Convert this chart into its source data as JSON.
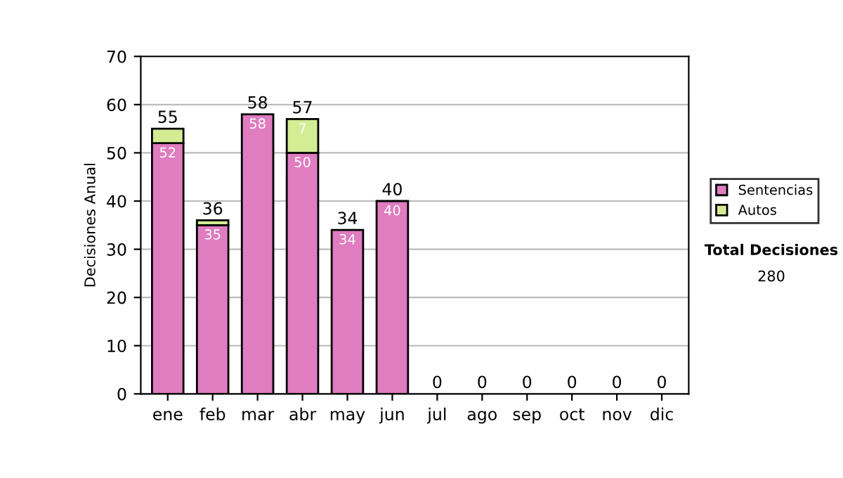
{
  "chart_data": {
    "type": "bar",
    "stacked": true,
    "ylabel": "Decisiones Anual",
    "categories": [
      "ene",
      "feb",
      "mar",
      "abr",
      "may",
      "jun",
      "jul",
      "ago",
      "sep",
      "oct",
      "nov",
      "dic"
    ],
    "series": [
      {
        "name": "Sentencias",
        "color": "#e07cc0",
        "values": [
          52,
          35,
          58,
          50,
          34,
          40,
          0,
          0,
          0,
          0,
          0,
          0
        ],
        "value_labels": [
          "52",
          "35",
          "58",
          "50",
          "34",
          "40",
          null,
          null,
          null,
          null,
          null,
          null
        ]
      },
      {
        "name": "Autos",
        "color": "#d4ec94",
        "values": [
          3,
          1,
          0,
          7,
          0,
          0,
          0,
          0,
          0,
          0,
          0,
          0
        ],
        "value_labels": [
          null,
          null,
          null,
          "7",
          null,
          null,
          null,
          null,
          null,
          null,
          null,
          null
        ]
      }
    ],
    "totals": [
      "55",
      "36",
      "58",
      "57",
      "34",
      "40",
      "0",
      "0",
      "0",
      "0",
      "0",
      "0"
    ],
    "ylim": [
      0,
      70
    ],
    "yticks": [
      0,
      10,
      20,
      30,
      40,
      50,
      60,
      70
    ],
    "grid": "y",
    "legend": "right",
    "annotations": [
      "Total Decisiones",
      "280"
    ]
  }
}
